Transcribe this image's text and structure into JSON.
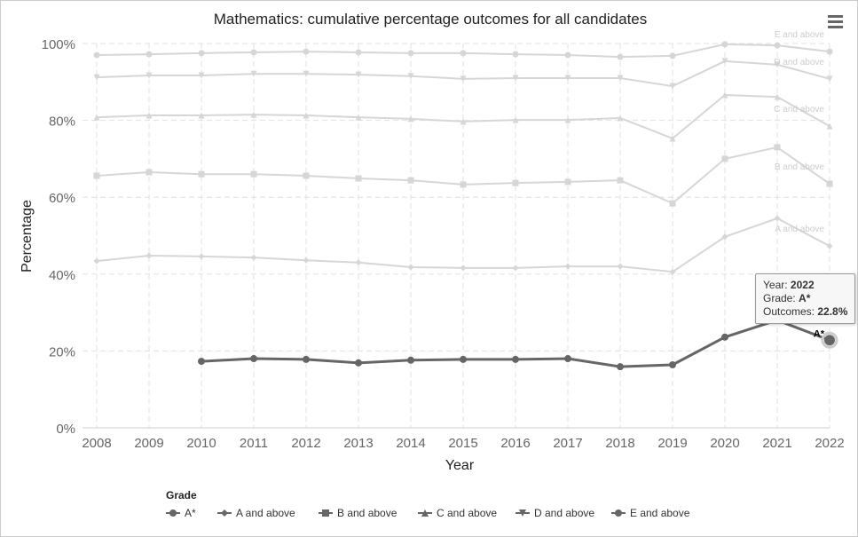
{
  "chart_data": {
    "type": "line",
    "title": "Mathematics: cumulative percentage outcomes for all candidates",
    "xlabel": "Year",
    "ylabel": "Percentage",
    "ylim": [
      0,
      100
    ],
    "yticks": [
      "0%",
      "20%",
      "40%",
      "60%",
      "80%",
      "100%"
    ],
    "x": [
      2008,
      2009,
      2010,
      2011,
      2012,
      2013,
      2014,
      2015,
      2016,
      2017,
      2018,
      2019,
      2020,
      2021,
      2022
    ],
    "legend_title": "Grade",
    "legend_position": "bottom",
    "series": [
      {
        "name": "A*",
        "symbol": "circle",
        "highlighted": true,
        "values": [
          null,
          null,
          17.3,
          18.0,
          17.8,
          16.9,
          17.6,
          17.8,
          17.8,
          18.0,
          15.9,
          16.4,
          23.6,
          28.0,
          22.8
        ]
      },
      {
        "name": "A and above",
        "symbol": "diamond",
        "values": [
          43.4,
          44.8,
          44.6,
          44.3,
          43.6,
          43.0,
          41.8,
          41.6,
          41.6,
          42.0,
          42.0,
          40.6,
          49.7,
          54.5,
          47.3
        ]
      },
      {
        "name": "B and above",
        "symbol": "square",
        "values": [
          65.6,
          66.5,
          66.0,
          66.0,
          65.6,
          64.9,
          64.4,
          63.3,
          63.7,
          64.0,
          64.4,
          58.4,
          70.0,
          73.0,
          63.5
        ]
      },
      {
        "name": "C and above",
        "symbol": "triangle",
        "values": [
          80.8,
          81.3,
          81.3,
          81.5,
          81.3,
          80.8,
          80.4,
          79.7,
          80.1,
          80.1,
          80.6,
          75.3,
          86.6,
          86.1,
          78.5
        ]
      },
      {
        "name": "D and above",
        "symbol": "triangle-down",
        "values": [
          91.2,
          91.7,
          91.7,
          92.1,
          92.1,
          91.9,
          91.5,
          90.8,
          91.0,
          91.0,
          91.0,
          88.9,
          95.4,
          94.5,
          90.8
        ]
      },
      {
        "name": "E and above",
        "symbol": "circle",
        "values": [
          97.0,
          97.2,
          97.5,
          97.7,
          97.9,
          97.7,
          97.5,
          97.5,
          97.2,
          97.0,
          96.5,
          96.8,
          99.8,
          99.5,
          97.9
        ]
      }
    ],
    "tooltip": {
      "year_label": "Year: ",
      "year": "2022",
      "grade_label": "Grade: ",
      "grade": "A*",
      "outcomes_label": "Outcomes: ",
      "outcomes": "22.8%"
    }
  },
  "colors": {
    "active": "#666666",
    "faded": "#d6d6d6",
    "grid": "#e0e0e0"
  }
}
